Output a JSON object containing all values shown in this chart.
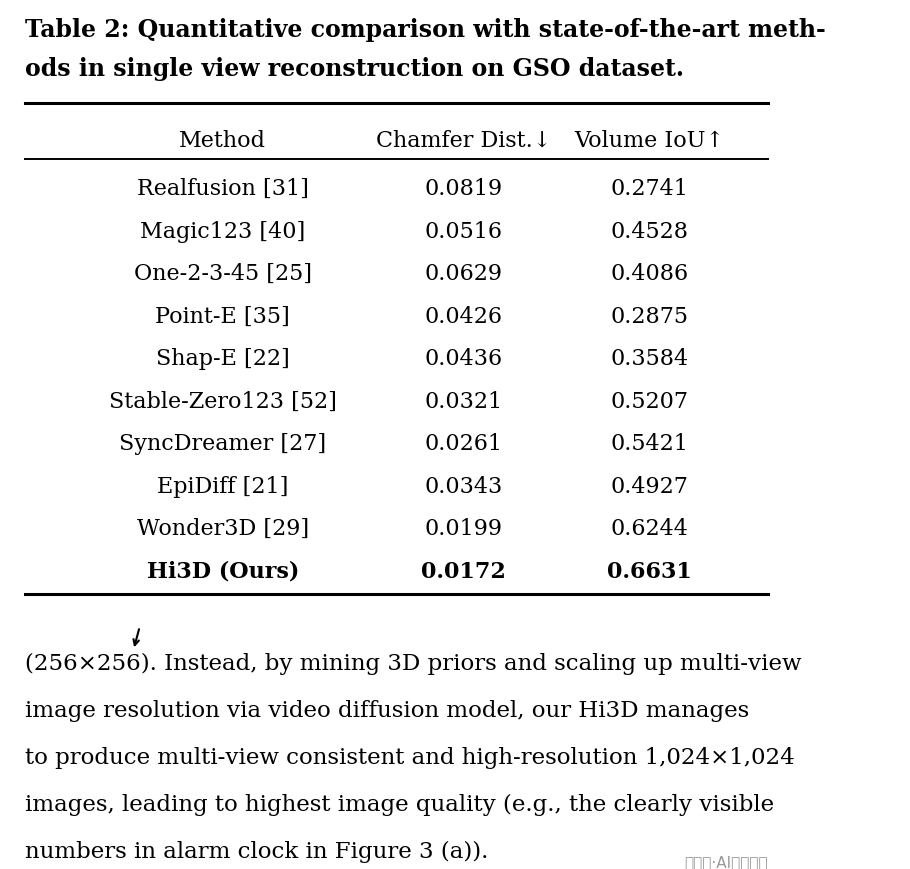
{
  "title_line1": "Table 2: Quantitative comparison with state-of-the-art meth-",
  "title_line2": "ods in single view reconstruction on GSO dataset.",
  "col_headers": [
    "Method",
    "Chamfer Dist.↓",
    "Volume IoU↑"
  ],
  "rows": [
    [
      "Realfusion [31]",
      "0.0819",
      "0.2741"
    ],
    [
      "Magic123 [40]",
      "0.0516",
      "0.4528"
    ],
    [
      "One-2-3-45 [25]",
      "0.0629",
      "0.4086"
    ],
    [
      "Point-E [35]",
      "0.0426",
      "0.2875"
    ],
    [
      "Shap-E [22]",
      "0.0436",
      "0.3584"
    ],
    [
      "Stable-Zero123 [52]",
      "0.0321",
      "0.5207"
    ],
    [
      "SyncDreamer [27]",
      "0.0261",
      "0.5421"
    ],
    [
      "EpiDiff [21]",
      "0.0343",
      "0.4927"
    ],
    [
      "Wonder3D [29]",
      "0.0199",
      "0.6244"
    ],
    [
      "Hi3D (Ours)",
      "0.0172",
      "0.6631"
    ]
  ],
  "bold_row_index": 9,
  "paragraph_lines": [
    "(256×256). Instead, by mining 3D priors and scaling up multi-view",
    "image resolution via video diffusion model, our Hi3D manages",
    "to produce multi-view consistent and high-resolution 1,024×1,024",
    "images, leading to highest image quality (e.g., the clearly visible",
    "numbers in alarm clock in Figure 3 (a))."
  ],
  "watermark_text": "公众号·AI生成未来",
  "bg_color": "#ffffff",
  "text_color": "#000000",
  "title_fontsize": 17,
  "header_fontsize": 16,
  "body_fontsize": 16,
  "para_fontsize": 16.5
}
